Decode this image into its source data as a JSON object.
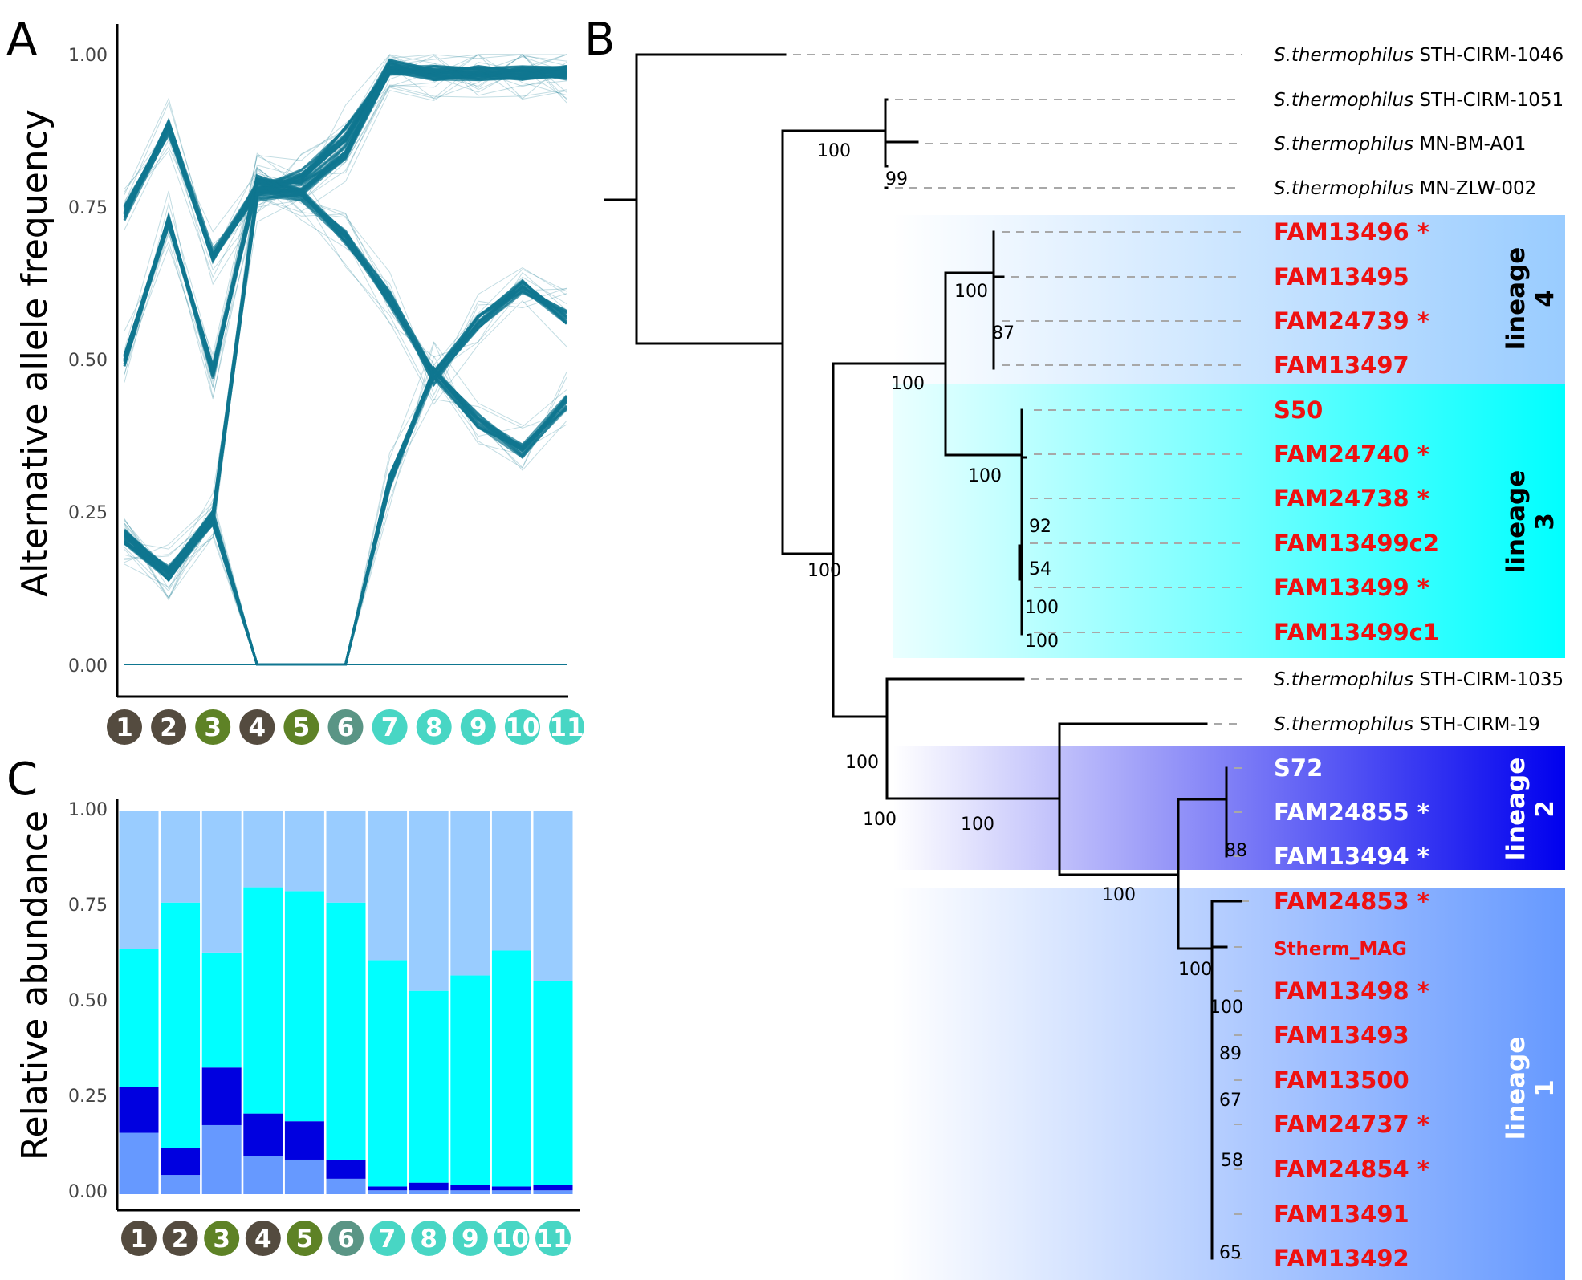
{
  "panels": {
    "a": {
      "letter": "A",
      "ylabel": "Alternative allele frequency",
      "yticks": [
        "1.00",
        "0.75",
        "0.50",
        "0.25",
        "0.00"
      ]
    },
    "b": {
      "letter": "B"
    },
    "c": {
      "letter": "C",
      "ylabel": "Relative abundance",
      "yticks": [
        "1.00",
        "0.75",
        "0.50",
        "0.25",
        "0.00"
      ]
    }
  },
  "samples": [
    {
      "label": "1",
      "color": "#544b3f"
    },
    {
      "label": "2",
      "color": "#544b3f"
    },
    {
      "label": "3",
      "color": "#5e8226"
    },
    {
      "label": "4",
      "color": "#544b3f"
    },
    {
      "label": "5",
      "color": "#5e8226"
    },
    {
      "label": "6",
      "color": "#5a9585"
    },
    {
      "label": "7",
      "color": "#48d6c4"
    },
    {
      "label": "8",
      "color": "#48d6c4"
    },
    {
      "label": "9",
      "color": "#48d6c4"
    },
    {
      "label": "10",
      "color": "#48d6c4"
    },
    {
      "label": "11",
      "color": "#48d6c4"
    }
  ],
  "chart_data": [
    {
      "type": "line",
      "panel": "A",
      "ylabel": "Alternative allele frequency",
      "ylim": [
        0,
        1
      ],
      "x": [
        "1",
        "2",
        "3",
        "4",
        "5",
        "6",
        "7",
        "8",
        "9",
        "10",
        "11"
      ],
      "line_color": "#0f7690",
      "series": [
        {
          "values": [
            0.74,
            0.88,
            0.67,
            0.78,
            0.8,
            0.87,
            0.98,
            0.97,
            0.97,
            0.97,
            0.97
          ]
        },
        {
          "values": [
            0.5,
            0.73,
            0.48,
            0.79,
            0.78,
            0.84,
            0.98,
            0.97,
            0.97,
            0.97,
            0.97
          ]
        },
        {
          "values": [
            0.21,
            0.15,
            0.24,
            0.0,
            0.0,
            0.0,
            0.3,
            0.48,
            0.4,
            0.35,
            0.43
          ]
        },
        {
          "values": [
            0.21,
            0.15,
            0.24,
            0.77,
            0.77,
            0.7,
            0.6,
            0.47,
            0.56,
            0.62,
            0.57
          ]
        },
        {
          "values": [
            0.0,
            0.0,
            0.0,
            0.0,
            0.0,
            0.0,
            0.0,
            0.0,
            0.0,
            0.0,
            0.0
          ]
        }
      ]
    },
    {
      "type": "bar",
      "stacked": true,
      "panel": "C",
      "ylabel": "Relative abundance",
      "ylim": [
        0,
        1
      ],
      "categories": [
        "1",
        "2",
        "3",
        "4",
        "5",
        "6",
        "7",
        "8",
        "9",
        "10",
        "11"
      ],
      "series": [
        {
          "color": "#6699ff",
          "values": [
            0.16,
            0.05,
            0.18,
            0.1,
            0.09,
            0.04,
            0.01,
            0.01,
            0.01,
            0.01,
            0.01
          ]
        },
        {
          "color": "#0000e0",
          "values": [
            0.12,
            0.07,
            0.15,
            0.11,
            0.1,
            0.05,
            0.01,
            0.02,
            0.015,
            0.01,
            0.015
          ]
        },
        {
          "color": "#00ffff",
          "values": [
            0.36,
            0.64,
            0.3,
            0.59,
            0.6,
            0.67,
            0.59,
            0.5,
            0.545,
            0.615,
            0.53
          ]
        },
        {
          "color": "#99ccff",
          "values": [
            0.36,
            0.24,
            0.37,
            0.2,
            0.21,
            0.24,
            0.39,
            0.47,
            0.43,
            0.365,
            0.445
          ]
        }
      ]
    }
  ],
  "tree": {
    "tips": [
      {
        "species": "S.thermophilus",
        "name": "STH-CIRM-1046",
        "color": "#000000"
      },
      {
        "species": "S.thermophilus",
        "name": "STH-CIRM-1051",
        "color": "#000000"
      },
      {
        "species": "S.thermophilus",
        "name": "MN-BM-A01",
        "color": "#000000"
      },
      {
        "species": "S.thermophilus",
        "name": "MN-ZLW-002",
        "color": "#000000"
      },
      {
        "species": "",
        "name": "FAM13496 *",
        "color": "#ee1111"
      },
      {
        "species": "",
        "name": "FAM13495",
        "color": "#ee1111"
      },
      {
        "species": "",
        "name": "FAM24739 *",
        "color": "#ee1111"
      },
      {
        "species": "",
        "name": "FAM13497",
        "color": "#ee1111"
      },
      {
        "species": "",
        "name": "S50",
        "color": "#ee1111"
      },
      {
        "species": "",
        "name": "FAM24740 *",
        "color": "#ee1111"
      },
      {
        "species": "",
        "name": "FAM24738 *",
        "color": "#ee1111"
      },
      {
        "species": "",
        "name": "FAM13499c2",
        "color": "#ee1111"
      },
      {
        "species": "",
        "name": "FAM13499 *",
        "color": "#ee1111"
      },
      {
        "species": "",
        "name": "FAM13499c1",
        "color": "#ee1111"
      },
      {
        "species": "S.thermophilus",
        "name": "STH-CIRM-1035",
        "color": "#000000"
      },
      {
        "species": "S.thermophilus",
        "name": "STH-CIRM-19",
        "color": "#000000"
      },
      {
        "species": "",
        "name": "S72",
        "color": "#ffffff"
      },
      {
        "species": "",
        "name": "FAM24855 *",
        "color": "#ffffff"
      },
      {
        "species": "",
        "name": "FAM13494 *",
        "color": "#ffffff"
      },
      {
        "species": "",
        "name": "FAM24853 *",
        "color": "#ee1111"
      },
      {
        "species": "",
        "name": "Stherm_MAG",
        "color": "#ee1111",
        "small": true
      },
      {
        "species": "",
        "name": "FAM13498 *",
        "color": "#ee1111"
      },
      {
        "species": "",
        "name": "FAM13493",
        "color": "#ee1111"
      },
      {
        "species": "",
        "name": "FAM13500",
        "color": "#ee1111"
      },
      {
        "species": "",
        "name": "FAM24737 *",
        "color": "#ee1111"
      },
      {
        "species": "",
        "name": "FAM24854 *",
        "color": "#ee1111"
      },
      {
        "species": "",
        "name": "FAM13491",
        "color": "#ee1111"
      },
      {
        "species": "",
        "name": "FAM13492",
        "color": "#ee1111"
      }
    ],
    "support_values": [
      "100",
      "99",
      "100",
      "87",
      "100",
      "100",
      "92",
      "54",
      "100",
      "100",
      "100",
      "100",
      "100",
      "100",
      "100",
      "100",
      "100",
      "88",
      "89",
      "67",
      "58",
      "65"
    ],
    "lineages": [
      {
        "word": "lineage",
        "number": "4",
        "color": "#99ccff",
        "text_color": "#000000"
      },
      {
        "word": "lineage",
        "number": "3",
        "color": "#00ffff",
        "text_color": "#000000"
      },
      {
        "word": "lineage",
        "number": "2",
        "color": "#0000ee",
        "text_color": "#ffffff"
      },
      {
        "word": "lineage",
        "number": "1",
        "color": "#6699ff",
        "text_color": "#ffffff"
      }
    ]
  }
}
